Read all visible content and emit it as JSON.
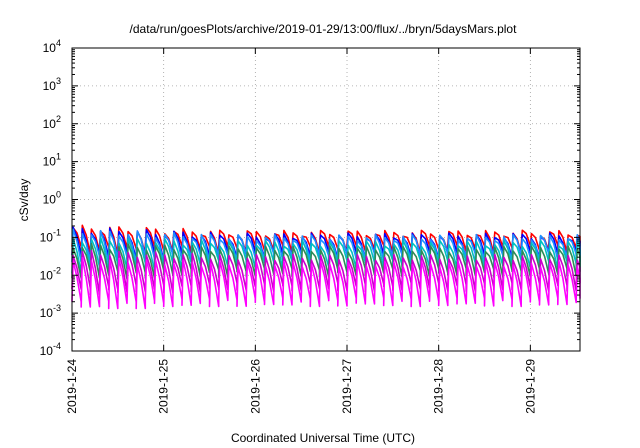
{
  "chart_data": {
    "type": "line",
    "title": "/data/run/goesPlots/archive/2019-01-29/13:00/flux/../bryn/5daysMars.plot",
    "xlabel": "Coordinated Universal Time (UTC)",
    "ylabel": "cSv/day",
    "yscale": "log",
    "ylim": [
      0.0001,
      10000
    ],
    "yticks": [
      {
        "value": 0.0001,
        "base": "10",
        "exp": "-4"
      },
      {
        "value": 0.001,
        "base": "10",
        "exp": "-3"
      },
      {
        "value": 0.01,
        "base": "10",
        "exp": "-2"
      },
      {
        "value": 0.1,
        "base": "10",
        "exp": "-1"
      },
      {
        "value": 1,
        "base": "10",
        "exp": "0"
      },
      {
        "value": 10,
        "base": "10",
        "exp": "1"
      },
      {
        "value": 100,
        "base": "10",
        "exp": "2"
      },
      {
        "value": 1000,
        "base": "10",
        "exp": "3"
      },
      {
        "value": 10000,
        "base": "10",
        "exp": "4"
      }
    ],
    "xlim": [
      "2019-01-24T00:00",
      "2019-01-29T13:00"
    ],
    "xticks": [
      "2019-1-24",
      "2019-1-25",
      "2019-1-26",
      "2019-1-27",
      "2019-1-28",
      "2019-1-29"
    ],
    "grid": true,
    "legend": "none",
    "cycle_hours": 2.4,
    "series": [
      {
        "color": "#ff0000",
        "peak_early": 0.18,
        "peak_late": 0.13,
        "trough_early": 0.045,
        "trough_late": 0.05
      },
      {
        "color": "#0000ff",
        "peak_early": 0.16,
        "peak_late": 0.11,
        "trough_early": 0.03,
        "trough_late": 0.035
      },
      {
        "color": "#1e90ff",
        "peak_early": 0.14,
        "peak_late": 0.1,
        "trough_early": 0.025,
        "trough_late": 0.03
      },
      {
        "color": "#00c0c0",
        "peak_early": 0.09,
        "peak_late": 0.07,
        "trough_early": 0.015,
        "trough_late": 0.02
      },
      {
        "color": "#2e8b57",
        "peak_early": 0.06,
        "peak_late": 0.05,
        "trough_early": 0.01,
        "trough_late": 0.012
      },
      {
        "color": "#cc00cc",
        "peak_early": 0.04,
        "peak_late": 0.03,
        "trough_early": 0.004,
        "trough_late": 0.005
      },
      {
        "color": "#ff00ff",
        "peak_early": 0.025,
        "peak_late": 0.02,
        "trough_early": 0.0016,
        "trough_late": 0.002
      }
    ]
  }
}
